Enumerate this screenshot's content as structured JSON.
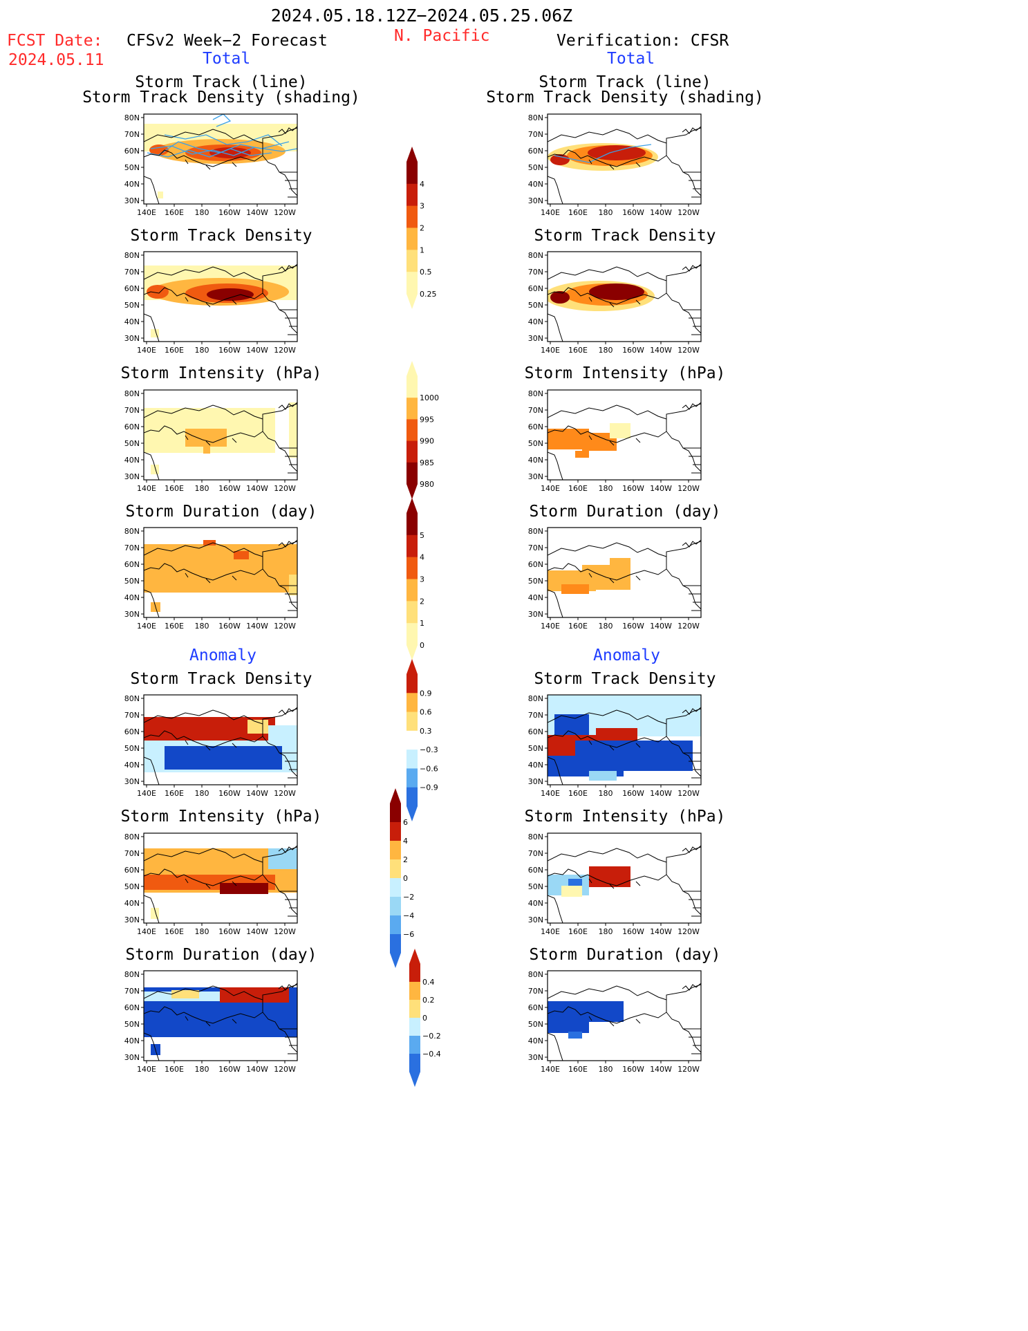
{
  "header": {
    "period": "2024.05.18.12Z−2024.05.25.06Z",
    "region": "N. Pacific",
    "fcst_label": "FCST Date:",
    "fcst_date": "2024.05.11",
    "left_title": "CFSv2 Week−2 Forecast",
    "right_title": "Verification: CFSR"
  },
  "sections": {
    "total": "Total",
    "anomaly": "Anomaly"
  },
  "panel_titles": {
    "track_line": "Storm Track (line)",
    "track_shading": "Storm Track Density (shading)",
    "density": "Storm Track Density",
    "intensity": "Storm Intensity (hPa)",
    "duration": "Storm Duration (day)"
  },
  "axes": {
    "lat_labels": [
      "80N",
      "70N",
      "60N",
      "50N",
      "40N",
      "30N"
    ],
    "lon_labels": [
      "140E",
      "160E",
      "180",
      "160W",
      "140W",
      "120W"
    ]
  },
  "colorbars": {
    "density_total": [
      "4",
      "3",
      "2",
      "1",
      "0.5",
      "0.25"
    ],
    "intensity_total": [
      "1000",
      "995",
      "990",
      "985",
      "980"
    ],
    "duration_total": [
      "5",
      "4",
      "3",
      "2",
      "1",
      "0"
    ],
    "density_anom": [
      "0.9",
      "0.6",
      "0.3",
      "−0.3",
      "−0.6",
      "−0.9"
    ],
    "intensity_anom": [
      "6",
      "4",
      "2",
      "0",
      "−2",
      "−4",
      "−6"
    ],
    "duration_anom": [
      "0.4",
      "0.2",
      "0",
      "−0.2",
      "−0.4"
    ]
  },
  "colors": {
    "title_red": "#ff2a2a",
    "section_blue": "#1e3cff",
    "storm_line": "#3aa0e8",
    "warm": [
      "#fff7b0",
      "#ffe07a",
      "#ffb640",
      "#ff8a1a",
      "#f05a10",
      "#c81e0a",
      "#8a0000"
    ],
    "cool": [
      "#c8f0ff",
      "#9ad8f5",
      "#5aaaf0",
      "#2a70e0",
      "#1248c8"
    ]
  }
}
